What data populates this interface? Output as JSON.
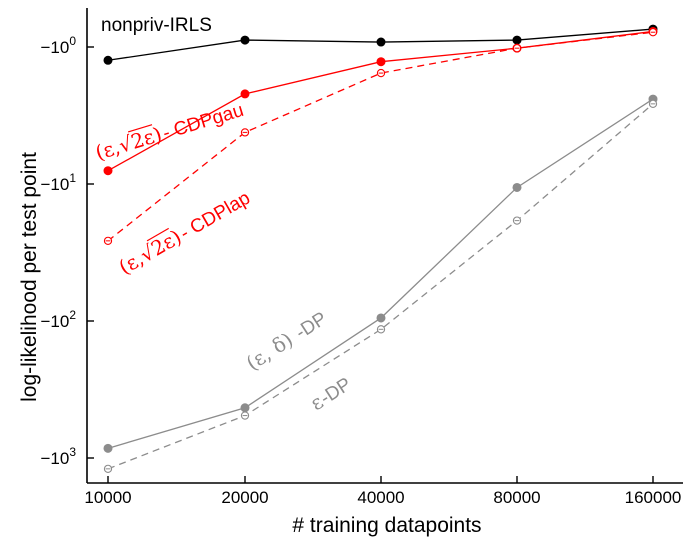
{
  "chart_data": {
    "type": "line",
    "x": [
      10000,
      20000,
      40000,
      80000,
      160000
    ],
    "x_tick_labels": [
      "10000",
      "20000",
      "40000",
      "80000",
      "160000"
    ],
    "x_scale": "log",
    "y_scale": "negative-log",
    "y_tick_labels": [
      {
        "value": -1,
        "base": "−10",
        "exp": "0"
      },
      {
        "value": -10,
        "base": "−10",
        "exp": "1"
      },
      {
        "value": -100,
        "base": "−10",
        "exp": "2"
      },
      {
        "value": -1000,
        "base": "−10",
        "exp": "3"
      }
    ],
    "ylim": [
      -1500,
      -0.6
    ],
    "xlabel": "# training datapoints",
    "ylabel": "log-likelihood per test point",
    "grid": false,
    "series": [
      {
        "name": "nonpriv-IRLS",
        "values": [
          -1.25,
          -0.89,
          -0.92,
          -0.89,
          -0.74
        ],
        "color": "#000000",
        "marker": "filled",
        "dash": false
      },
      {
        "name": "(ε,√2ε)- CDPgau",
        "values": [
          -8.0,
          -2.2,
          -1.28,
          -1.02,
          -0.77
        ],
        "color": "#ff0000",
        "marker": "filled",
        "dash": false
      },
      {
        "name": "(ε,√2ε)- CDPlap",
        "values": [
          -26.0,
          -4.2,
          -1.55,
          -1.02,
          -0.78
        ],
        "color": "#ff0000",
        "marker": "open",
        "dash": true
      },
      {
        "name": "(ε,δ)-DP",
        "values": [
          -850,
          -430,
          -95,
          -10.6,
          -2.4
        ],
        "color": "#8c8c8c",
        "marker": "filled",
        "dash": false
      },
      {
        "name": "ε-DP",
        "values": [
          -1200,
          -490,
          -115,
          -18.5,
          -2.6
        ],
        "color": "#8c8c8c",
        "marker": "open",
        "dash": true
      }
    ],
    "annotations": {
      "nonpriv": "nonpriv-IRLS",
      "cdpgau_suffix": "- CDPgau",
      "cdplap_suffix": "- CDPlap",
      "dp_suffix": "-DP",
      "edp_suffix": "-DP"
    }
  }
}
